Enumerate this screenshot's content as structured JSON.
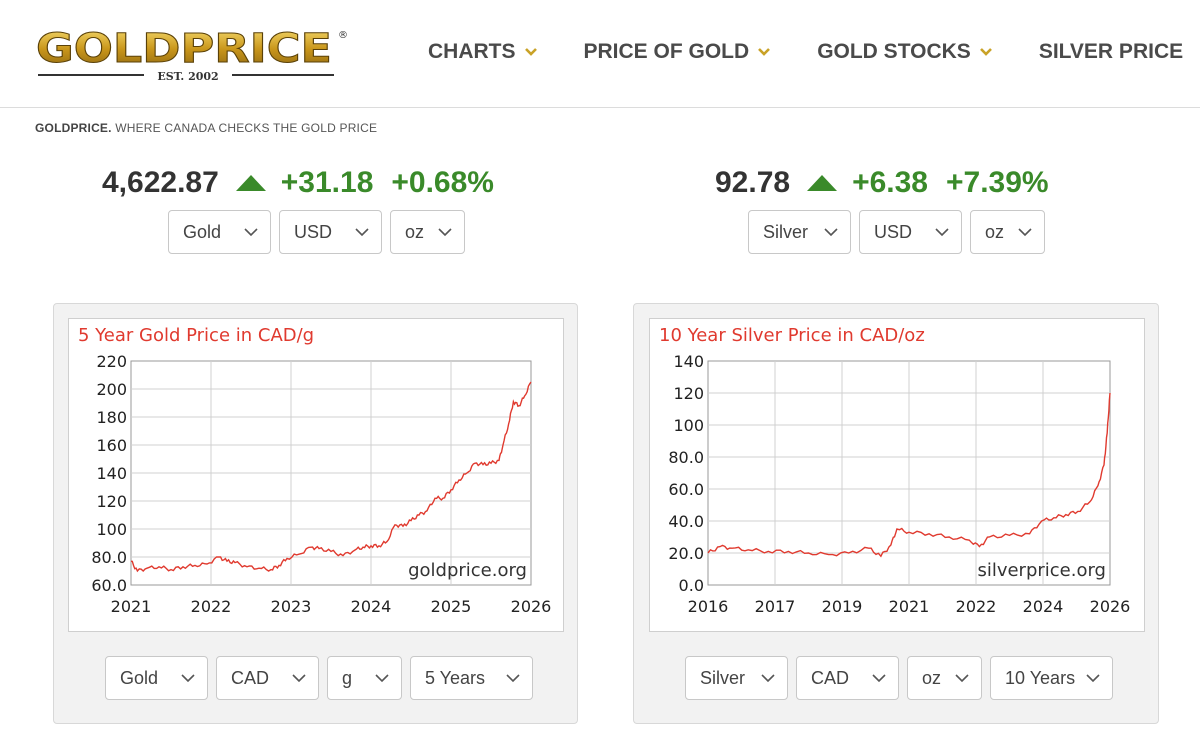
{
  "brand": {
    "logo_text": "GOLDPRICE",
    "registered_mark": "®",
    "logo_est": "EST. 2002"
  },
  "nav": [
    {
      "label": "CHARTS",
      "has_dropdown": true
    },
    {
      "label": "PRICE OF GOLD",
      "has_dropdown": true
    },
    {
      "label": "GOLD STOCKS",
      "has_dropdown": true
    },
    {
      "label": "SILVER PRICE",
      "has_dropdown": false
    }
  ],
  "tagline": {
    "brand": "GOLDPRICE.",
    "text": " WHERE CANADA CHECKS THE GOLD PRICE"
  },
  "gold_quote": {
    "price": "4,622.87",
    "change": "+31.18",
    "change_pct": "+0.68%",
    "direction": "up",
    "selects": [
      "Gold",
      "USD",
      "oz"
    ]
  },
  "silver_quote": {
    "price": "92.78",
    "change": "+6.38",
    "change_pct": "+7.39%",
    "direction": "up",
    "selects": [
      "Silver",
      "USD",
      "oz"
    ]
  },
  "colors": {
    "up_green": "#3a8a2a",
    "chart_red": "#e03a2f",
    "nav_gray": "#4a4a4a",
    "chevron_gold": "#c9a227"
  },
  "gold_chart_selects": [
    "Gold",
    "CAD",
    "g",
    "5 Years"
  ],
  "silver_chart_selects": [
    "Silver",
    "CAD",
    "oz",
    "10 Years"
  ],
  "chart_data": [
    {
      "type": "line",
      "title": "5 Year Gold Price in CAD/g",
      "watermark": "goldprice.org",
      "x_ticks": [
        "2021",
        "2022",
        "2023",
        "2024",
        "2025",
        "2026"
      ],
      "y_ticks": [
        "60.0",
        "80.0",
        "100",
        "120",
        "140",
        "160",
        "180",
        "200",
        "220"
      ],
      "ylim": [
        60,
        220
      ],
      "xlim": [
        2021.0,
        2026.0
      ],
      "grid": true,
      "series": [
        {
          "x": [
            2021.0,
            2021.08,
            2021.2,
            2021.35,
            2021.5,
            2021.65,
            2021.8,
            2021.95,
            2022.1,
            2022.2,
            2022.3,
            2022.45,
            2022.6,
            2022.75,
            2022.85,
            2022.95,
            2023.1,
            2023.25,
            2023.35,
            2023.5,
            2023.65,
            2023.8,
            2023.9,
            2024.0,
            2024.1,
            2024.2,
            2024.3,
            2024.4,
            2024.5,
            2024.6,
            2024.7,
            2024.8,
            2024.9,
            2025.0,
            2025.1,
            2025.2,
            2025.3,
            2025.4,
            2025.5,
            2025.6,
            2025.65,
            2025.72,
            2025.78,
            2025.85,
            2025.92,
            2026.0
          ],
          "y": [
            77,
            70,
            72,
            73,
            71,
            73,
            74,
            75,
            80,
            77,
            76,
            73,
            72,
            71,
            74,
            79,
            82,
            87,
            86,
            84,
            81,
            85,
            87,
            88,
            88,
            91,
            103,
            102,
            106,
            110,
            113,
            122,
            122,
            128,
            135,
            140,
            147,
            146,
            147,
            149,
            160,
            175,
            191,
            188,
            195,
            205
          ]
        }
      ]
    },
    {
      "type": "line",
      "title": "10 Year Silver Price in CAD/oz",
      "watermark": "silverprice.org",
      "x_ticks": [
        "2016",
        "2017",
        "2019",
        "2021",
        "2022",
        "2024",
        "2026"
      ],
      "y_ticks": [
        "0.0",
        "20.0",
        "40.0",
        "60.0",
        "80.0",
        "100",
        "120",
        "140"
      ],
      "ylim": [
        0,
        140
      ],
      "xlim": [
        2016.0,
        2026.0
      ],
      "grid": true,
      "series": [
        {
          "x": [
            2016.0,
            2016.3,
            2016.6,
            2017.0,
            2017.5,
            2018.0,
            2018.5,
            2019.0,
            2019.5,
            2020.0,
            2020.3,
            2020.55,
            2020.7,
            2021.0,
            2021.5,
            2022.0,
            2022.5,
            2022.75,
            2023.0,
            2023.5,
            2024.0,
            2024.3,
            2024.6,
            2024.9,
            2025.2,
            2025.5,
            2025.7,
            2025.85,
            2025.93,
            2026.0
          ],
          "y": [
            20,
            24,
            23,
            22,
            21,
            21,
            20,
            19,
            20,
            23,
            18,
            25,
            35,
            33,
            32,
            30,
            28,
            24,
            30,
            31,
            32,
            40,
            42,
            44,
            46,
            52,
            62,
            75,
            95,
            120
          ]
        }
      ]
    }
  ]
}
